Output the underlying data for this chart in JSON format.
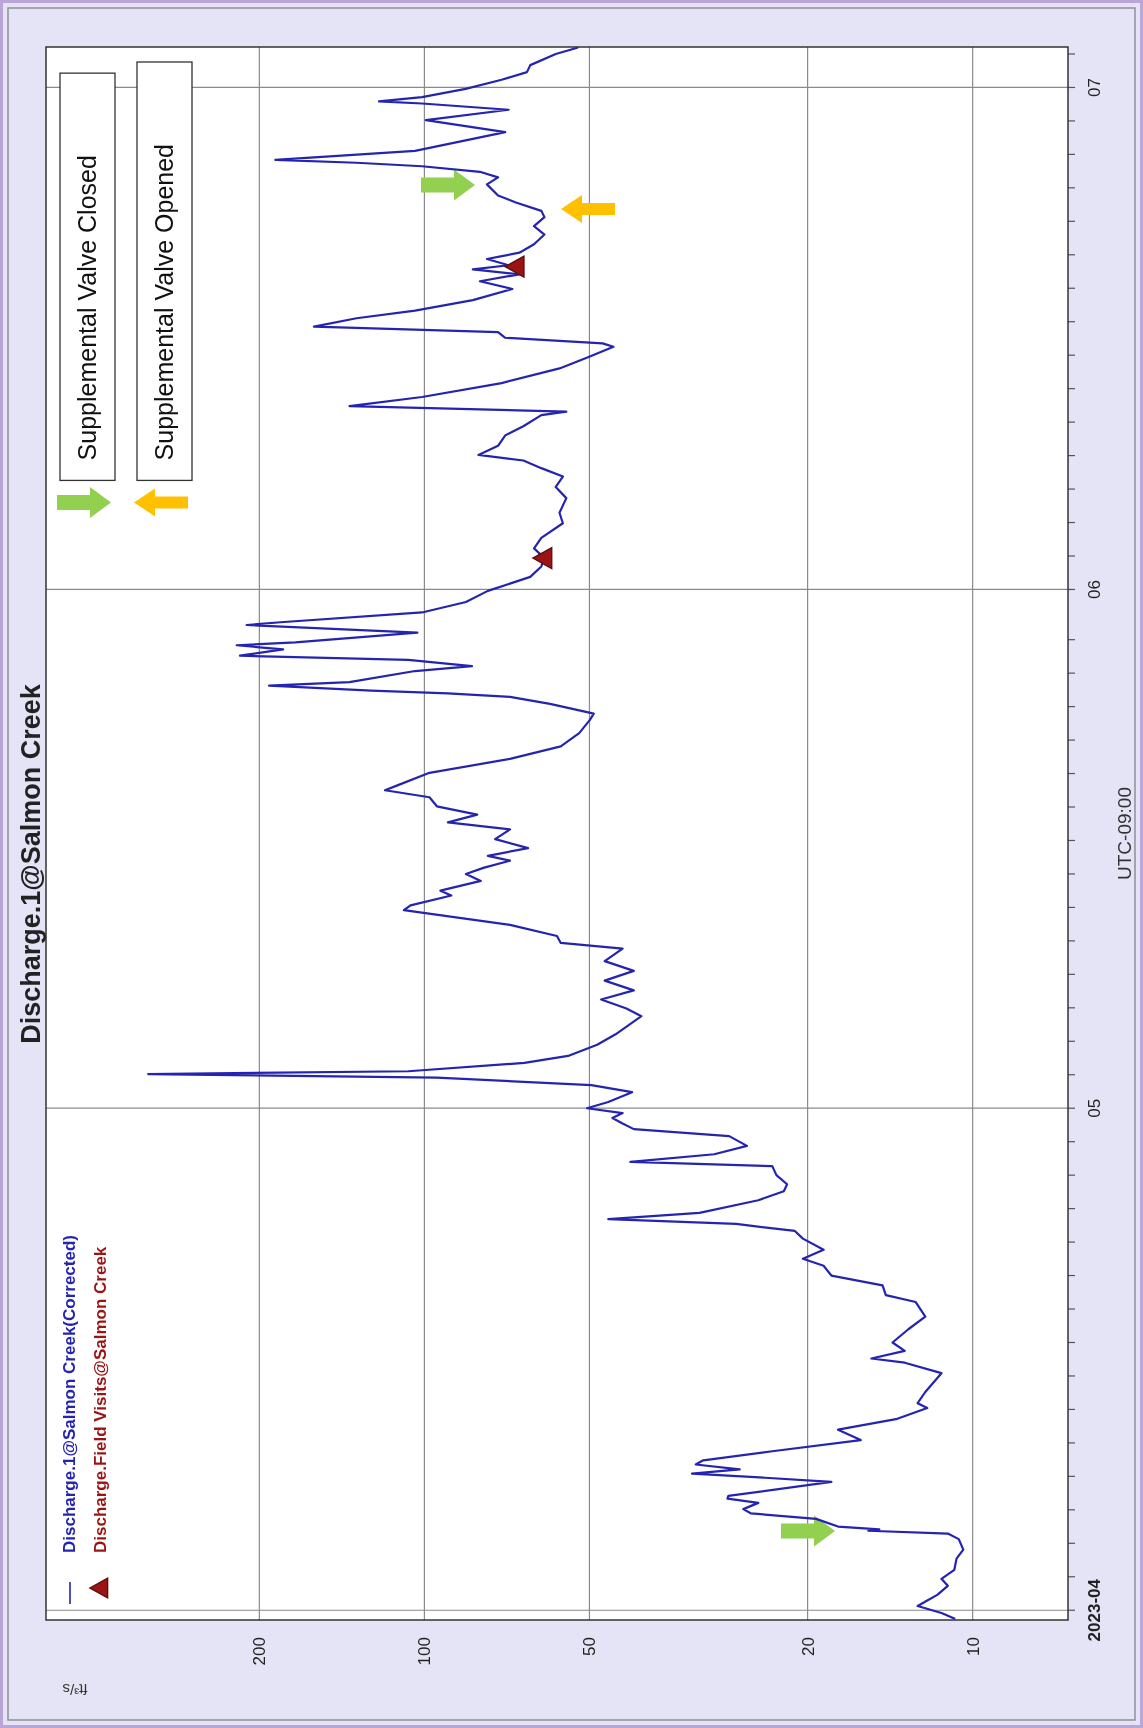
{
  "chart_data": {
    "type": "line",
    "orientation": "horizontal",
    "title": "Discharge.1@Salmon Creek",
    "xlabel": "ft³/s",
    "ylabel": "UTC-09:00",
    "xlim": [
      490,
      6.7
    ],
    "ylim": [
      "2023-03-31T10:00",
      "2023-07-03T10:00"
    ],
    "log": "x",
    "grid": true,
    "legend": "bottom left",
    "xticks": [
      200,
      100,
      50,
      20,
      10
    ],
    "yticks": [
      {
        "value": "2023-04-01",
        "label": "2023-04"
      },
      {
        "value": "2023-04-03",
        "label": null
      },
      {
        "value": "2023-04-05",
        "label": null
      },
      {
        "value": "2023-04-07",
        "label": null
      },
      {
        "value": "2023-04-09",
        "label": null
      },
      {
        "value": "2023-04-11",
        "label": null
      },
      {
        "value": "2023-04-13",
        "label": null
      },
      {
        "value": "2023-04-15",
        "label": null
      },
      {
        "value": "2023-04-17",
        "label": null
      },
      {
        "value": "2023-04-19",
        "label": null
      },
      {
        "value": "2023-04-21",
        "label": null
      },
      {
        "value": "2023-04-23",
        "label": null
      },
      {
        "value": "2023-04-25",
        "label": null
      },
      {
        "value": "2023-04-27",
        "label": null
      },
      {
        "value": "2023-04-29",
        "label": null
      },
      {
        "value": "2023-05-01",
        "label": "05"
      },
      {
        "value": "2023-05-03",
        "label": null
      },
      {
        "value": "2023-05-05",
        "label": null
      },
      {
        "value": "2023-05-07",
        "label": null
      },
      {
        "value": "2023-05-09",
        "label": null
      },
      {
        "value": "2023-05-11",
        "label": null
      },
      {
        "value": "2023-05-13",
        "label": null
      },
      {
        "value": "2023-05-15",
        "label": null
      },
      {
        "value": "2023-05-17",
        "label": null
      },
      {
        "value": "2023-05-19",
        "label": null
      },
      {
        "value": "2023-05-21",
        "label": null
      },
      {
        "value": "2023-05-23",
        "label": null
      },
      {
        "value": "2023-05-25",
        "label": null
      },
      {
        "value": "2023-05-27",
        "label": null
      },
      {
        "value": "2023-05-29",
        "label": null
      },
      {
        "value": "2023-06-01",
        "label": "06"
      },
      {
        "value": "2023-06-03",
        "label": null
      },
      {
        "value": "2023-06-05",
        "label": null
      },
      {
        "value": "2023-06-07",
        "label": null
      },
      {
        "value": "2023-06-09",
        "label": null
      },
      {
        "value": "2023-06-11",
        "label": null
      },
      {
        "value": "2023-06-13",
        "label": null
      },
      {
        "value": "2023-06-15",
        "label": null
      },
      {
        "value": "2023-06-17",
        "label": null
      },
      {
        "value": "2023-06-19",
        "label": null
      },
      {
        "value": "2023-06-21",
        "label": null
      },
      {
        "value": "2023-06-23",
        "label": null
      },
      {
        "value": "2023-06-25",
        "label": null
      },
      {
        "value": "2023-06-27",
        "label": null
      },
      {
        "value": "2023-06-29",
        "label": null
      },
      {
        "value": "2023-07-01",
        "label": "07"
      },
      {
        "value": "2023-07-03",
        "label": null
      }
    ],
    "annotations": [
      "Supplemental Valve Closed",
      "Supplemental Valve Opened"
    ],
    "series": [
      {
        "name": "Discharge.1@Salmon Creek(Corrected)",
        "color": "#2424b0",
        "x": [
          "2023-03-31T12:00",
          "2023-03-31T20:00",
          "2023-04-01T06:00",
          "2023-04-01T14:00",
          "2023-04-01T22:00",
          "2023-04-02T11:00",
          "2023-04-02T21:00",
          "2023-04-03T10:00",
          "2023-04-04T02:00",
          "2023-04-04T15:00",
          "2023-04-05T06:00",
          "2023-04-05T14:00",
          "2023-04-05T18:00",
          "2023-04-05T20:00",
          "2023-04-06T00:00",
          "2023-04-06T11:00",
          "2023-04-06T19:00",
          "2023-04-07T01:00",
          "2023-04-07T10:00",
          "2023-04-07T16:00",
          "2023-04-07T20:00",
          "2023-04-08T16:00",
          "2023-04-08T22:00",
          "2023-04-09T04:00",
          "2023-04-09T10:00",
          "2023-04-09T17:00",
          "2023-04-09T23:00",
          "2023-04-10T12:00",
          "2023-04-11T04:00",
          "2023-04-11T19:00",
          "2023-04-12T10:00",
          "2023-04-13T02:00",
          "2023-04-13T09:00",
          "2023-04-14T01:00",
          "2023-04-15T04:00",
          "2023-04-15T19:00",
          "2023-04-16T01:00",
          "2023-04-16T12:00",
          "2023-04-17T00:00",
          "2023-04-17T19:00",
          "2023-04-18T13:00",
          "2023-04-19T10:00",
          "2023-04-19T20:00",
          "2023-04-20T10:00",
          "2023-04-21T00:00",
          "2023-04-21T14:00",
          "2023-04-22T00:00",
          "2023-04-22T13:00",
          "2023-04-23T05:00",
          "2023-04-23T16:00",
          "2023-04-24T02:00",
          "2023-04-24T09:00",
          "2023-04-24T18:00",
          "2023-04-25T12:00",
          "2023-04-26T01:00",
          "2023-04-26T11:00",
          "2023-04-27T00:00",
          "2023-04-27T13:00",
          "2023-04-27T19:00",
          "2023-04-28T06:00",
          "2023-04-28T18:00",
          "2023-04-29T08:00",
          "2023-04-29T18:00",
          "2023-04-30T02:00",
          "2023-04-30T10:00",
          "2023-04-30T17:00",
          "2023-05-01T00:00",
          "2023-05-01T09:00",
          "2023-05-01T23:00",
          "2023-05-02T09:00",
          "2023-05-02T20:00",
          "2023-05-03T01:00",
          "2023-05-03T05:00",
          "2023-05-03T17:00",
          "2023-05-04T03:00",
          "2023-05-04T19:00",
          "2023-05-05T10:00",
          "2023-05-06T12:00",
          "2023-05-06T23:00",
          "2023-05-07T12:00",
          "2023-05-08T01:00",
          "2023-05-08T15:00",
          "2023-05-09T05:00",
          "2023-05-09T19:00",
          "2023-05-10T13:00",
          "2023-05-10T21:00",
          "2023-05-11T07:00",
          "2023-05-11T23:00",
          "2023-05-12T20:00",
          "2023-05-13T03:00",
          "2023-05-13T17:00",
          "2023-05-14T00:00",
          "2023-05-14T14:00",
          "2023-05-15T00:00",
          "2023-05-15T09:00",
          "2023-05-15T19:00",
          "2023-05-16T02:00",
          "2023-05-16T13:00",
          "2023-05-17T02:00",
          "2023-05-17T16:00",
          "2023-05-18T02:00",
          "2023-05-18T13:00",
          "2023-05-19T01:00",
          "2023-05-19T14:00",
          "2023-05-20T00:00",
          "2023-05-20T07:00",
          "2023-05-21T01:00",
          "2023-05-21T21:00",
          "2023-05-22T15:00",
          "2023-05-23T10:00",
          "2023-05-24T05:00",
          "2023-05-24T14:00",
          "2023-05-25T04:00",
          "2023-05-25T14:00",
          "2023-05-25T19:00",
          "2023-05-25T23:00",
          "2023-05-26T06:00",
          "2023-05-26T11:00",
          "2023-05-27T03:00",
          "2023-05-27T10:00",
          "2023-05-27T19:00",
          "2023-05-28T01:00",
          "2023-05-28T10:00",
          "2023-05-28T16:00",
          "2023-05-28T20:00",
          "2023-05-29T10:00",
          "2023-05-29T21:00",
          "2023-05-30T01:00",
          "2023-05-30T15:00",
          "2023-05-31T06:00",
          "2023-05-31T22:00",
          "2023-06-01T18:00",
          "2023-06-02T09:00",
          "2023-06-02T21:00",
          "2023-06-03T11:00",
          "2023-06-04T02:00",
          "2023-06-04T23:00",
          "2023-06-05T14:00",
          "2023-06-06T11:00",
          "2023-06-07T03:00",
          "2023-06-07T18:00",
          "2023-06-08T06:00",
          "2023-06-08T17:00",
          "2023-06-09T01:00",
          "2023-06-09T14:00",
          "2023-06-10T05:00",
          "2023-06-10T18:00",
          "2023-06-11T10:00",
          "2023-06-11T15:00",
          "2023-06-11T23:00",
          "2023-06-12T12:00",
          "2023-06-13T08:00",
          "2023-06-14T05:00",
          "2023-06-14T21:00",
          "2023-06-15T12:00",
          "2023-06-15T17:00",
          "2023-06-16T01:00",
          "2023-06-16T09:00",
          "2023-06-16T17:00",
          "2023-06-17T05:00",
          "2023-06-17T16:00",
          "2023-06-18T07:00",
          "2023-06-18T23:00",
          "2023-06-19T10:00",
          "2023-06-19T20:00",
          "2023-06-20T03:00",
          "2023-06-20T09:00",
          "2023-06-20T18:00",
          "2023-06-21T03:00",
          "2023-06-21T15:00",
          "2023-06-22T05:00",
          "2023-06-22T17:00",
          "2023-06-23T06:00",
          "2023-06-23T15:00",
          "2023-06-24T03:00",
          "2023-06-24T13:00",
          "2023-06-25T05:00",
          "2023-06-25T15:00",
          "2023-06-25T23:00",
          "2023-06-26T07:00",
          "2023-06-26T12:00",
          "2023-06-26T16:00",
          "2023-06-27T05:00",
          "2023-06-27T20:00",
          "2023-06-28T08:00",
          "2023-06-29T01:00",
          "2023-06-29T16:00",
          "2023-06-30T01:00",
          "2023-06-30T04:00",
          "2023-06-30T10:00",
          "2023-06-30T22:00",
          "2023-07-01T11:00",
          "2023-07-01T22:00",
          "2023-07-02T08:00",
          "2023-07-03T00:00",
          "2023-07-03T09:00"
        ],
        "values": [
          10.8,
          11.4,
          12.6,
          12.1,
          11.6,
          11.1,
          11.4,
          10.8,
          10.7,
          10.4,
          10.6,
          11.1,
          15.5,
          14.8,
          17.6,
          19.3,
          25.4,
          26.2,
          24.6,
          28.0,
          27.9,
          18.1,
          23.9,
          32.5,
          26.6,
          32.0,
          31.0,
          23.2,
          16.0,
          17.6,
          13.8,
          12.1,
          12.6,
          12.2,
          11.4,
          13.3,
          15.3,
          13.3,
          14.0,
          13.1,
          12.2,
          12.7,
          14.4,
          14.6,
          18.1,
          18.7,
          20.4,
          18.7,
          20.4,
          21.1,
          27.0,
          46.2,
          31.5,
          24.6,
          22.1,
          21.8,
          22.8,
          23.2,
          42.1,
          29.6,
          25.8,
          27.8,
          41.5,
          43.5,
          45.4,
          43.5,
          50.5,
          46.2,
          41.8,
          49.6,
          94.9,
          319,
          107,
          65.7,
          54.7,
          48.4,
          44.8,
          40.2,
          42.8,
          47.6,
          41.5,
          46.9,
          41.5,
          46.9,
          43.5,
          56.4,
          57.3,
          69.8,
          109,
          106,
          89.3,
          93.5,
          78.9,
          84.0,
          77.8,
          69.8,
          76.6,
          64.7,
          74.3,
          69.8,
          90.6,
          80.1,
          94.9,
          97.9,
          118,
          112,
          97.9,
          69.8,
          56.4,
          52.2,
          49.9,
          49.1,
          59.0,
          69.8,
          90.6,
          125,
          192,
          137,
          104,
          81.9,
          107,
          217,
          181,
          220,
          172,
          103,
          211,
          183,
          101,
          84.0,
          76.6,
          64.1,
          61.2,
          60.4,
          63.1,
          61.2,
          55.9,
          56.7,
          55.1,
          57.6,
          55.9,
          61.2,
          66.0,
          79.7,
          73.4,
          71.2,
          66.0,
          61.2,
          55.1,
          137,
          101,
          72.3,
          56.7,
          50.3,
          45.2,
          47.3,
          71.2,
          73.4,
          159,
          133,
          104,
          81.6,
          69.1,
          79.2,
          67.1,
          81.6,
          70.2,
          76.9,
          67.1,
          63.1,
          60.4,
          63.1,
          60.4,
          61.2,
          68.1,
          73.4,
          76.9,
          73.4,
          79.2,
          101,
          133,
          187,
          104,
          84.1,
          71.2,
          99.4,
          70.2,
          101,
          121,
          101,
          84.1,
          72.3,
          65.0,
          64.1,
          57.6,
          52.6
        ]
      },
      {
        "name": "Discharge.Field Visits@Salmon Creek",
        "type": "scatter",
        "color": "#9b1414",
        "marker": "triangle",
        "x": [
          "2023-06-02T21:00",
          "2023-06-20T07:00"
        ],
        "values": [
          60.6,
          68.1
        ]
      }
    ]
  }
}
